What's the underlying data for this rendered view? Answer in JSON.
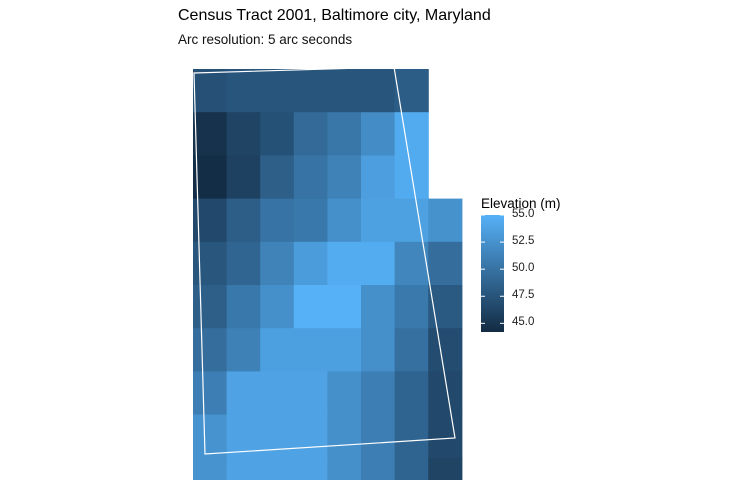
{
  "chart_data": {
    "type": "heatmap",
    "title": "Census Tract 2001, Baltimore city, Maryland",
    "subtitle": "Arc resolution: 5 arc seconds",
    "legend": {
      "title": "Elevation (m)",
      "ticks": [
        "55.0",
        "52.5",
        "50.0",
        "47.5",
        "45.0"
      ],
      "tick_values": [
        55.0,
        52.5,
        50.0,
        47.5,
        45.0
      ],
      "range": [
        44.2,
        55.0
      ],
      "placement": "right"
    },
    "colors": {
      "low": "#132b43",
      "high": "#56b1f7",
      "boundary": "#ffffff",
      "background": "#ffffff"
    },
    "grid": false,
    "n_rows": 10,
    "n_cols": 8,
    "rows": [
      [
        47.2,
        47.6,
        47.6,
        47.6,
        47.6,
        47.6,
        48.2,
        null
      ],
      [
        44.8,
        46.2,
        47.3,
        49.3,
        50.3,
        52.0,
        54.5,
        null
      ],
      [
        44.4,
        46.0,
        48.4,
        50.0,
        51.2,
        53.5,
        54.5,
        null
      ],
      [
        46.6,
        48.3,
        50.0,
        50.4,
        52.3,
        53.7,
        53.7,
        52.5
      ],
      [
        47.7,
        48.9,
        51.3,
        53.3,
        54.6,
        54.6,
        51.6,
        49.6
      ],
      [
        48.4,
        50.4,
        52.3,
        55.0,
        55.0,
        52.3,
        50.5,
        47.9
      ],
      [
        49.6,
        51.1,
        53.6,
        53.6,
        53.6,
        52.3,
        49.8,
        46.9
      ],
      [
        51.0,
        53.8,
        53.8,
        53.8,
        52.3,
        51.0,
        48.8,
        46.6
      ],
      [
        52.6,
        53.8,
        53.8,
        53.8,
        52.3,
        51.0,
        48.8,
        46.6
      ],
      [
        52.6,
        53.8,
        53.8,
        53.8,
        52.3,
        51.0,
        48.8,
        46.2
      ]
    ]
  }
}
